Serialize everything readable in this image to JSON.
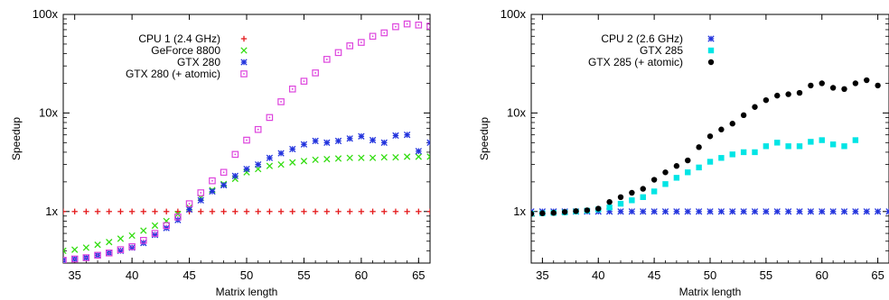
{
  "chart_data": [
    {
      "type": "scatter",
      "xlabel": "Matrix length",
      "ylabel": "Speedup",
      "xlim": [
        34,
        66
      ],
      "ylim": [
        0.3,
        100
      ],
      "y_scale": "log",
      "xticks": [
        "35",
        "40",
        "45",
        "50",
        "55",
        "60",
        "65"
      ],
      "yticks": [
        "1x",
        "10x",
        "100x"
      ],
      "legend_position": "top-left",
      "series": [
        {
          "name": "CPU 1 (2.4 GHz)",
          "marker": "plus",
          "color": "#e41a1c",
          "x": [
            34,
            35,
            36,
            37,
            38,
            39,
            40,
            41,
            42,
            43,
            44,
            45,
            46,
            47,
            48,
            49,
            50,
            51,
            52,
            53,
            54,
            55,
            56,
            57,
            58,
            59,
            60,
            61,
            62,
            63,
            64,
            65,
            66
          ],
          "y": [
            1,
            1,
            1,
            1,
            1,
            1,
            1,
            1,
            1,
            1,
            1,
            1,
            1,
            1,
            1,
            1,
            1,
            1,
            1,
            1,
            1,
            1,
            1,
            1,
            1,
            1,
            1,
            1,
            1,
            1,
            1,
            1,
            1
          ]
        },
        {
          "name": "GeForce 8800",
          "marker": "x",
          "color": "#33dd11",
          "x": [
            34,
            35,
            36,
            37,
            38,
            39,
            40,
            41,
            42,
            43,
            44,
            45,
            46,
            47,
            48,
            49,
            50,
            51,
            52,
            53,
            54,
            55,
            56,
            57,
            58,
            59,
            60,
            61,
            62,
            63,
            64,
            65,
            66
          ],
          "y": [
            0.4,
            0.41,
            0.43,
            0.46,
            0.49,
            0.53,
            0.57,
            0.64,
            0.72,
            0.8,
            0.94,
            1.1,
            1.38,
            1.65,
            1.9,
            2.15,
            2.5,
            2.7,
            2.9,
            3.0,
            3.15,
            3.25,
            3.35,
            3.4,
            3.45,
            3.5,
            3.5,
            3.5,
            3.55,
            3.55,
            3.6,
            3.6,
            3.6
          ]
        },
        {
          "name": "GTX 280",
          "marker": "asterisk",
          "color": "#2233dd",
          "x": [
            34,
            35,
            36,
            37,
            38,
            39,
            40,
            41,
            42,
            43,
            44,
            45,
            46,
            47,
            48,
            49,
            50,
            51,
            52,
            53,
            54,
            55,
            56,
            57,
            58,
            59,
            60,
            61,
            62,
            63,
            64,
            65,
            66
          ],
          "y": [
            0.32,
            0.33,
            0.34,
            0.36,
            0.38,
            0.4,
            0.43,
            0.48,
            0.58,
            0.68,
            0.82,
            1.05,
            1.3,
            1.6,
            1.85,
            2.3,
            2.7,
            3.0,
            3.5,
            3.9,
            4.3,
            4.8,
            5.2,
            5.0,
            5.2,
            5.5,
            5.8,
            5.3,
            5.0,
            5.9,
            6.0,
            4.1,
            5.0
          ]
        },
        {
          "name": "GTX 280 (+ atomic)",
          "marker": "square",
          "color": "#dd44dd",
          "x": [
            34,
            35,
            36,
            37,
            38,
            39,
            40,
            41,
            42,
            43,
            44,
            45,
            46,
            47,
            48,
            49,
            50,
            51,
            52,
            53,
            54,
            55,
            56,
            57,
            58,
            59,
            60,
            61,
            62,
            63,
            64,
            65,
            66
          ],
          "y": [
            0.32,
            0.33,
            0.34,
            0.36,
            0.38,
            0.41,
            0.44,
            0.51,
            0.6,
            0.72,
            0.88,
            1.2,
            1.55,
            2.05,
            2.5,
            3.8,
            5.3,
            6.8,
            9.0,
            13.0,
            17.5,
            21.0,
            25.5,
            35.0,
            41.0,
            48.0,
            52.0,
            60.0,
            65.0,
            75.0,
            80.0,
            78.0,
            76.0
          ]
        }
      ]
    },
    {
      "type": "scatter",
      "xlabel": "Matrix length",
      "ylabel": "Speedup",
      "xlim": [
        34,
        66
      ],
      "ylim": [
        0.3,
        100
      ],
      "y_scale": "log",
      "xticks": [
        "35",
        "40",
        "45",
        "50",
        "55",
        "60",
        "65"
      ],
      "yticks": [
        "1x",
        "10x",
        "100x"
      ],
      "legend_position": "top-left",
      "series": [
        {
          "name": "CPU 2 (2.6 GHz)",
          "marker": "asterisk",
          "color": "#2233dd",
          "x": [
            34,
            35,
            36,
            37,
            38,
            39,
            40,
            41,
            42,
            43,
            44,
            45,
            46,
            47,
            48,
            49,
            50,
            51,
            52,
            53,
            54,
            55,
            56,
            57,
            58,
            59,
            60,
            61,
            62,
            63,
            64,
            65,
            66
          ],
          "y": [
            1,
            1,
            1,
            1,
            1,
            1,
            1,
            1,
            1,
            1,
            1,
            1,
            1,
            1,
            1,
            1,
            1,
            1,
            1,
            1,
            1,
            1,
            1,
            1,
            1,
            1,
            1,
            1,
            1,
            1,
            1,
            1,
            1
          ]
        },
        {
          "name": "GTX 285",
          "marker": "filled-square",
          "color": "#00e5e5",
          "x": [
            34,
            35,
            36,
            37,
            38,
            39,
            40,
            41,
            42,
            43,
            44,
            45,
            46,
            47,
            48,
            49,
            50,
            51,
            52,
            53,
            54,
            55,
            56,
            57,
            58,
            59,
            60,
            61,
            62,
            63
          ],
          "y": [
            0.95,
            0.96,
            0.97,
            0.98,
            1.0,
            1.02,
            1.05,
            1.1,
            1.2,
            1.3,
            1.4,
            1.6,
            1.9,
            2.2,
            2.5,
            2.8,
            3.2,
            3.5,
            3.8,
            4.0,
            4.0,
            4.6,
            5.0,
            4.6,
            4.6,
            5.1,
            5.3,
            4.8,
            4.6,
            5.3
          ]
        },
        {
          "name": "GTX 285 (+ atomic)",
          "marker": "dot",
          "color": "#000000",
          "x": [
            34,
            35,
            36,
            37,
            38,
            39,
            40,
            41,
            42,
            43,
            44,
            45,
            46,
            47,
            48,
            49,
            50,
            51,
            52,
            53,
            54,
            55,
            56,
            57,
            58,
            59,
            60,
            61,
            62,
            63,
            64,
            65
          ],
          "y": [
            0.95,
            0.96,
            0.97,
            0.99,
            1.01,
            1.03,
            1.07,
            1.25,
            1.4,
            1.55,
            1.7,
            2.1,
            2.5,
            2.9,
            3.3,
            4.5,
            5.8,
            6.8,
            7.8,
            9.5,
            11.5,
            13.5,
            15.0,
            15.5,
            16.0,
            19.0,
            20.0,
            18.0,
            17.5,
            20.0,
            21.5,
            19.0
          ]
        }
      ]
    }
  ]
}
